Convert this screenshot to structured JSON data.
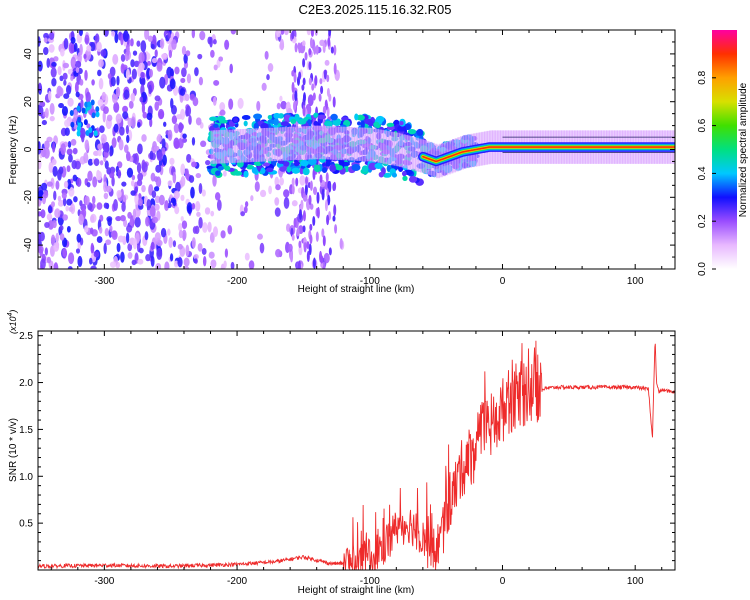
{
  "title": "C2E3.2025.115.16.32.R05",
  "chart_data": [
    {
      "type": "heatmap",
      "xlabel": "Height of straight line (km)",
      "ylabel": "Frequency (Hz)",
      "xlim": [
        -350,
        130
      ],
      "ylim": [
        -50,
        50
      ],
      "xticks": [
        -300,
        -200,
        -100,
        0,
        100
      ],
      "yticks": [
        -40,
        -20,
        0,
        20,
        40
      ],
      "colorbar": {
        "label": "Normalized spectral amplitude",
        "range": [
          0,
          1
        ],
        "ticks": [
          0.0,
          0.2,
          0.4,
          0.6,
          0.8
        ]
      },
      "ridge": {
        "x": [
          -220,
          -180,
          -140,
          -100,
          -80,
          -60,
          -50,
          -40,
          -30,
          -20,
          -10,
          0,
          20,
          40,
          60,
          80,
          100,
          120,
          130
        ],
        "y": [
          1,
          2,
          3,
          2,
          0,
          -3,
          -5,
          -3,
          -1,
          0,
          1,
          1,
          1,
          1,
          1,
          1,
          1,
          1,
          1
        ]
      }
    },
    {
      "type": "line",
      "xlabel": "Height of straight line (km)",
      "ylabel": "SNR (10 * v/v)",
      "y_multiplier": "(x10^4)",
      "xlim": [
        -350,
        130
      ],
      "ylim": [
        0,
        2.55
      ],
      "xticks": [
        -300,
        -200,
        -100,
        0,
        100
      ],
      "yticks": [
        0.5,
        1.0,
        1.5,
        2.0,
        2.5
      ],
      "series": [
        {
          "color": "#ee2b2b",
          "x": [
            -350,
            -300,
            -250,
            -200,
            -170,
            -150,
            -130,
            -110,
            -100,
            -90,
            -80,
            -70,
            -60,
            -55,
            -50,
            -45,
            -40,
            -35,
            -30,
            -25,
            -20,
            -15,
            -10,
            -5,
            0,
            5,
            10,
            20,
            30,
            40,
            60,
            80,
            100,
            110,
            113,
            115,
            116,
            118,
            120,
            130
          ],
          "values": [
            0.04,
            0.05,
            0.04,
            0.06,
            0.09,
            0.14,
            0.07,
            0.07,
            0.12,
            0.25,
            0.45,
            0.5,
            0.35,
            0.2,
            0.22,
            0.4,
            0.7,
            0.9,
            1.1,
            1.2,
            1.3,
            1.45,
            1.5,
            1.6,
            1.7,
            1.8,
            1.85,
            1.9,
            1.93,
            1.95,
            1.95,
            1.95,
            1.95,
            1.93,
            1.4,
            2.5,
            2.0,
            1.9,
            1.92,
            1.9
          ]
        }
      ]
    }
  ]
}
